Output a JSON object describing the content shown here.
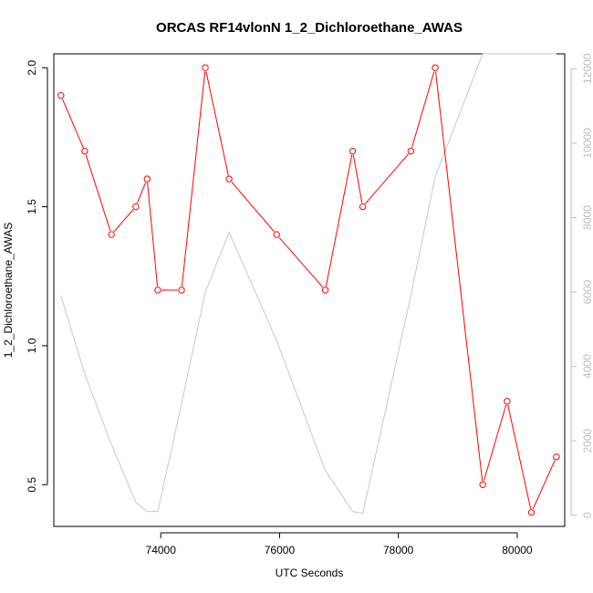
{
  "chart_data": {
    "type": "line",
    "title": "ORCAS RF14vlonN 1_2_Dichloroethane_AWAS",
    "xlabel": "UTC Seconds",
    "ylabel": "1_2_Dichloroethane_AWAS",
    "xlim": [
      72200,
      80800
    ],
    "ylim": [
      0.35,
      2.05
    ],
    "y2lim": [
      -300,
      12400
    ],
    "xticks": [
      74000,
      76000,
      78000,
      80000
    ],
    "yticks": [
      0.5,
      1.0,
      1.5,
      2.0
    ],
    "ytick_labels": [
      "0.5",
      "1.0",
      "1.5",
      "2.0"
    ],
    "y2ticks": [
      0,
      2000,
      4000,
      6000,
      8000,
      10000,
      12000
    ],
    "grid": false,
    "series": [
      {
        "axis": "left",
        "color": "#ff0000",
        "marker": "open-circle",
        "x": [
          72320,
          72720,
          73170,
          73580,
          73770,
          73950,
          74350,
          74750,
          75150,
          75950,
          76770,
          77230,
          77400,
          78210,
          78620,
          79420,
          79830,
          80240,
          80660
        ],
        "y": [
          1.9,
          1.7,
          1.4,
          1.5,
          1.6,
          1.2,
          1.2,
          2.0,
          1.6,
          1.4,
          1.2,
          1.7,
          1.5,
          1.7,
          2.0,
          0.5,
          0.8,
          0.4,
          0.6
        ]
      },
      {
        "axis": "right",
        "color": "#c8c8c8",
        "marker": "none",
        "x": [
          72320,
          72720,
          73170,
          73580,
          73770,
          73950,
          74350,
          74750,
          75150,
          75950,
          76770,
          77230,
          77400,
          78210,
          78620,
          79420,
          79830,
          80240,
          80660
        ],
        "y": [
          5900,
          3800,
          1900,
          350,
          100,
          100,
          3000,
          6000,
          7600,
          4700,
          1200,
          100,
          50,
          5900,
          9100,
          12400,
          12400,
          12400,
          12400
        ]
      }
    ]
  }
}
